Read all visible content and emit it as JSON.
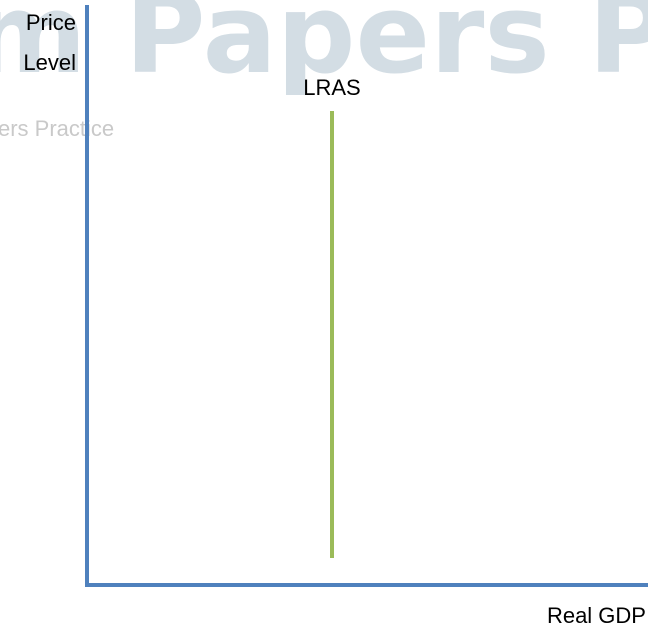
{
  "watermark": {
    "large": "m Papers P",
    "small": "ers Practice"
  },
  "diagram": {
    "y_axis_label": [
      "Price",
      "Level"
    ],
    "x_axis_label": "Real GDP",
    "curves": [
      {
        "label": "LRAS",
        "color": "#9bbb59"
      }
    ],
    "axis_color": "#4f81bd"
  }
}
